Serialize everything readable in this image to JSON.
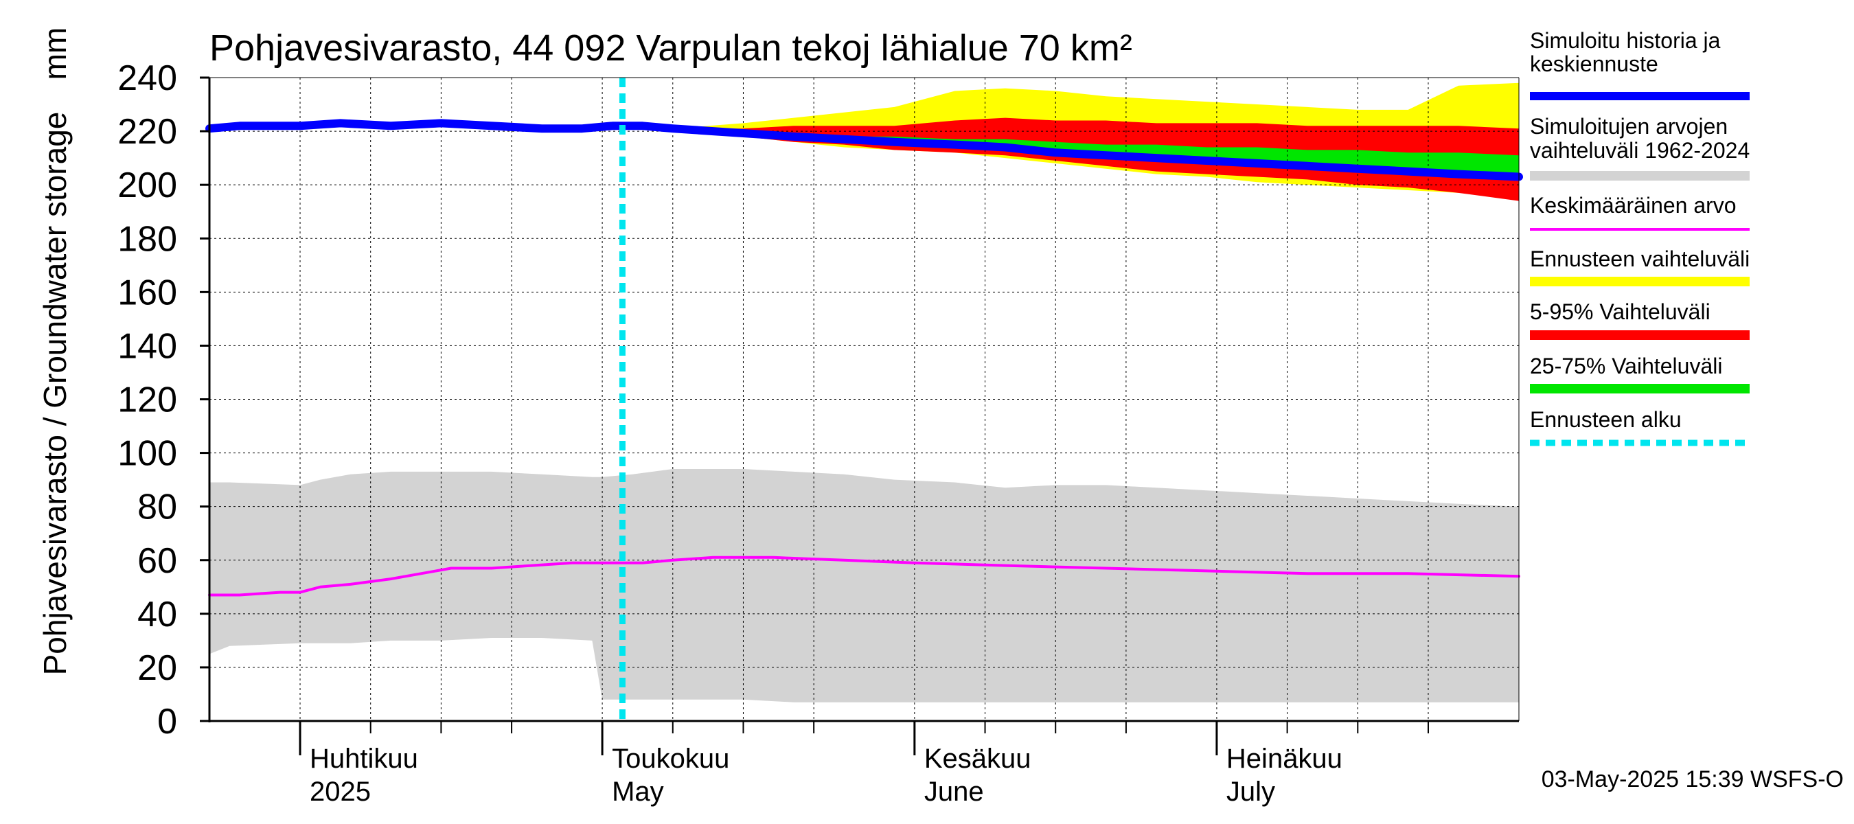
{
  "chart_data": {
    "type": "area",
    "title": "Pohjavesivarasto, 44 092 Varpulan tekoj lähialue 70 km²",
    "ylabel": "Pohjavesivarasto / Groundwater storage",
    "yunit": "mm",
    "ylim": [
      0,
      240
    ],
    "yticks": [
      0,
      20,
      40,
      60,
      80,
      100,
      120,
      140,
      160,
      180,
      200,
      220,
      240
    ],
    "xlim": [
      "2025-03-23",
      "2025-07-31"
    ],
    "month_ticks": [
      "2025-04-01",
      "2025-05-01",
      "2025-06-01",
      "2025-07-01"
    ],
    "month_labels": [
      {
        "date": "2025-04-01",
        "fi": "Huhtikuu",
        "en": "2025"
      },
      {
        "date": "2025-05-01",
        "fi": "Toukokuu",
        "en": "May"
      },
      {
        "date": "2025-06-01",
        "fi": "Kesäkuu",
        "en": "June"
      },
      {
        "date": "2025-07-01",
        "fi": "Heinäkuu",
        "en": "July"
      }
    ],
    "grid": true,
    "legend_position": "right",
    "forecast_start": "2025-05-03",
    "footer": "03-May-2025 15:39 WSFS-O",
    "colors": {
      "simulated": "#0000ff",
      "historical_range": "#d3d3d3",
      "mean": "#ff00ff",
      "forecast_range": "#ffff00",
      "p5_95": "#ff0000",
      "p25_75": "#00e600",
      "forecast_start": "#00e5ee"
    },
    "legend": [
      {
        "key": "simulated",
        "label": "Simuloitu historia ja keskiennuste",
        "style": "thick"
      },
      {
        "key": "historical_range",
        "label": "Simuloitujen arvojen vaihteluväli 1962-2024",
        "style": "band"
      },
      {
        "key": "mean",
        "label": "Keskimääräinen arvo",
        "style": "thin"
      },
      {
        "key": "forecast_range",
        "label": "Ennusteen vaihteluväli",
        "style": "band"
      },
      {
        "key": "p5_95",
        "label": "5-95% Vaihteluväli",
        "style": "band"
      },
      {
        "key": "p25_75",
        "label": "25-75% Vaihteluväli",
        "style": "band"
      },
      {
        "key": "forecast_start",
        "label": "Ennusteen alku",
        "style": "dotted"
      }
    ],
    "series": {
      "historical_range": {
        "x": [
          "2025-03-23",
          "2025-03-25",
          "2025-04-01",
          "2025-04-03",
          "2025-04-06",
          "2025-04-10",
          "2025-04-15",
          "2025-04-20",
          "2025-04-25",
          "2025-04-30",
          "2025-05-01",
          "2025-05-04",
          "2025-05-08",
          "2025-05-15",
          "2025-05-20",
          "2025-05-25",
          "2025-05-30",
          "2025-06-05",
          "2025-06-10",
          "2025-06-15",
          "2025-06-20",
          "2025-06-25",
          "2025-06-30",
          "2025-07-05",
          "2025-07-10",
          "2025-07-15",
          "2025-07-20",
          "2025-07-25",
          "2025-07-31"
        ],
        "upper": [
          89,
          89,
          88,
          90,
          92,
          93,
          93,
          93,
          92,
          91,
          91,
          92,
          94,
          94,
          93,
          92,
          90,
          89,
          87,
          88,
          88,
          87,
          86,
          85,
          84,
          83,
          82,
          81,
          80
        ],
        "lower": [
          25,
          28,
          29,
          29,
          29,
          30,
          30,
          31,
          31,
          30,
          8,
          8,
          8,
          8,
          7,
          7,
          7,
          7,
          7,
          7,
          7,
          7,
          7,
          7,
          7,
          7,
          7,
          7,
          7
        ]
      },
      "mean": {
        "x": [
          "2025-03-23",
          "2025-03-26",
          "2025-03-30",
          "2025-04-01",
          "2025-04-03",
          "2025-04-06",
          "2025-04-10",
          "2025-04-13",
          "2025-04-16",
          "2025-04-20",
          "2025-04-24",
          "2025-04-28",
          "2025-05-01",
          "2025-05-05",
          "2025-05-08",
          "2025-05-12",
          "2025-05-18",
          "2025-05-25",
          "2025-06-01",
          "2025-06-10",
          "2025-06-20",
          "2025-06-30",
          "2025-07-10",
          "2025-07-20",
          "2025-07-31"
        ],
        "values": [
          47,
          47,
          48,
          48,
          50,
          51,
          53,
          55,
          57,
          57,
          58,
          59,
          59,
          59,
          60,
          61,
          61,
          60,
          59,
          58,
          57,
          56,
          55,
          55,
          54
        ]
      },
      "forecast_range": {
        "x": [
          "2025-05-08",
          "2025-05-15",
          "2025-05-20",
          "2025-05-25",
          "2025-05-30",
          "2025-06-05",
          "2025-06-10",
          "2025-06-15",
          "2025-06-20",
          "2025-06-25",
          "2025-06-30",
          "2025-07-05",
          "2025-07-10",
          "2025-07-15",
          "2025-07-20",
          "2025-07-25",
          "2025-07-31"
        ],
        "upper": [
          221,
          223,
          225,
          227,
          229,
          235,
          236,
          235,
          233,
          232,
          231,
          230,
          229,
          228,
          228,
          237,
          238
        ],
        "lower": [
          221,
          218,
          216,
          214,
          213,
          212,
          210,
          208,
          206,
          204,
          203,
          201,
          200,
          199,
          198,
          197,
          196
        ]
      },
      "p5_95": {
        "x": [
          "2025-05-08",
          "2025-05-15",
          "2025-05-20",
          "2025-05-25",
          "2025-05-30",
          "2025-06-05",
          "2025-06-10",
          "2025-06-15",
          "2025-06-20",
          "2025-06-25",
          "2025-06-30",
          "2025-07-05",
          "2025-07-10",
          "2025-07-15",
          "2025-07-20",
          "2025-07-25",
          "2025-07-31"
        ],
        "upper": [
          221,
          221,
          222,
          222,
          222,
          224,
          225,
          224,
          224,
          223,
          223,
          223,
          222,
          222,
          222,
          222,
          221
        ],
        "lower": [
          221,
          218,
          216,
          215,
          213,
          212,
          211,
          209,
          207,
          205,
          204,
          203,
          202,
          200,
          199,
          197,
          194
        ]
      },
      "p25_75": {
        "x": [
          "2025-05-08",
          "2025-05-15",
          "2025-05-20",
          "2025-05-25",
          "2025-05-30",
          "2025-06-05",
          "2025-06-10",
          "2025-06-15",
          "2025-06-20",
          "2025-06-25",
          "2025-06-30",
          "2025-07-05",
          "2025-07-10",
          "2025-07-15",
          "2025-07-20",
          "2025-07-25",
          "2025-07-31"
        ],
        "upper": [
          221,
          220,
          219,
          218,
          218,
          217,
          217,
          216,
          215,
          215,
          214,
          214,
          213,
          213,
          212,
          212,
          211
        ],
        "lower": [
          221,
          219,
          218,
          217,
          216,
          215,
          214,
          212,
          211,
          210,
          209,
          208,
          207,
          206,
          205,
          204,
          203
        ]
      },
      "simulated": {
        "x": [
          "2025-03-23",
          "2025-03-26",
          "2025-03-30",
          "2025-04-01",
          "2025-04-05",
          "2025-04-10",
          "2025-04-15",
          "2025-04-20",
          "2025-04-25",
          "2025-04-29",
          "2025-05-02",
          "2025-05-05",
          "2025-05-08",
          "2025-05-12",
          "2025-05-16",
          "2025-05-20",
          "2025-05-25",
          "2025-05-30",
          "2025-06-05",
          "2025-06-10",
          "2025-06-15",
          "2025-06-20",
          "2025-06-25",
          "2025-06-30",
          "2025-07-05",
          "2025-07-10",
          "2025-07-15",
          "2025-07-20",
          "2025-07-25",
          "2025-07-31"
        ],
        "values": [
          221,
          222,
          222,
          222,
          223,
          222,
          223,
          222,
          221,
          221,
          222,
          222,
          221,
          220,
          219,
          218,
          217,
          216,
          215,
          214,
          212,
          211,
          210,
          209,
          208,
          207,
          206,
          205,
          204,
          203
        ]
      }
    }
  }
}
